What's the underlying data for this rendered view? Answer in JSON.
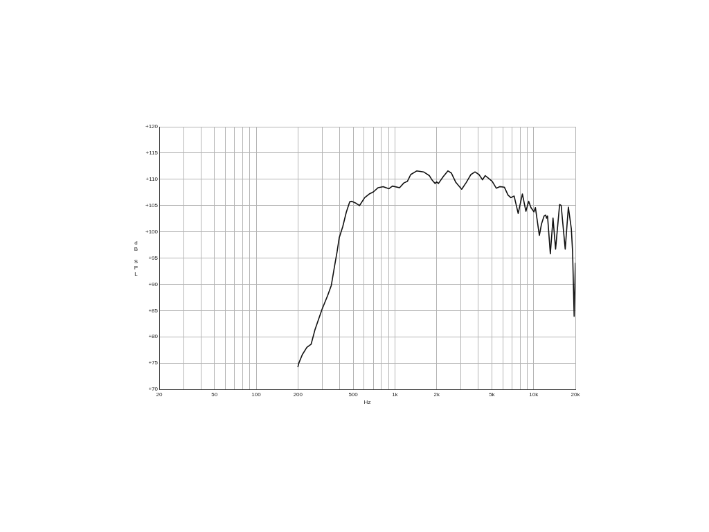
{
  "chart_data": {
    "type": "line",
    "xlabel": "Hz",
    "ylabel": "dB SPL",
    "log": "x",
    "grid": true,
    "xlim": [
      20,
      20000
    ],
    "ylim": [
      70,
      120
    ],
    "xticks": [
      20,
      {
        "value": 30,
        "label": null
      },
      {
        "value": 40,
        "label": null
      },
      50,
      {
        "value": 60,
        "label": null
      },
      {
        "value": 70,
        "label": null
      },
      {
        "value": 80,
        "label": null
      },
      {
        "value": 90,
        "label": null
      },
      100,
      200,
      {
        "value": 300,
        "label": null
      },
      {
        "value": 400,
        "label": null
      },
      500,
      {
        "value": 600,
        "label": null
      },
      {
        "value": 700,
        "label": null
      },
      {
        "value": 800,
        "label": null
      },
      {
        "value": 900,
        "label": null
      },
      {
        "value": 1000,
        "label": "1k"
      },
      {
        "value": 2000,
        "label": "2k"
      },
      {
        "value": 3000,
        "label": null
      },
      {
        "value": 4000,
        "label": null
      },
      {
        "value": 5000,
        "label": "5k"
      },
      {
        "value": 6000,
        "label": null
      },
      {
        "value": 7000,
        "label": null
      },
      {
        "value": 8000,
        "label": null
      },
      {
        "value": 9000,
        "label": null
      },
      {
        "value": 10000,
        "label": "10k"
      },
      {
        "value": 20000,
        "label": "20k"
      }
    ],
    "yticks": [
      {
        "value": 70,
        "label": "+70"
      },
      {
        "value": 75,
        "label": "+75"
      },
      {
        "value": 80,
        "label": "+80"
      },
      {
        "value": 85,
        "label": "+85"
      },
      {
        "value": 90,
        "label": "+90"
      },
      {
        "value": 95,
        "label": "+95"
      },
      {
        "value": 100,
        "label": "+100"
      },
      {
        "value": 105,
        "label": "+105"
      },
      {
        "value": 110,
        "label": "+110"
      },
      {
        "value": 115,
        "label": "+115"
      },
      {
        "value": 120,
        "label": "+120"
      }
    ],
    "x": [
      200,
      203,
      215,
      232,
      249,
      265,
      298,
      328,
      348,
      368,
      383,
      397,
      421,
      446,
      472,
      490,
      519,
      556,
      605,
      653,
      700,
      757,
      823,
      906,
      960,
      1080,
      1160,
      1230,
      1300,
      1440,
      1610,
      1770,
      1860,
      1950,
      2000,
      2060,
      2230,
      2410,
      2550,
      2750,
      3030,
      3270,
      3530,
      3780,
      4040,
      4280,
      4480,
      5030,
      5380,
      5700,
      6150,
      6540,
      6860,
      7240,
      7400,
      7740,
      8300,
      8800,
      9210,
      9570,
      10050,
      10300,
      11000,
      11400,
      11900,
      12200,
      12400,
      12600,
      13200,
      13800,
      14400,
      15400,
      15800,
      16900,
      17800,
      18700,
      19100,
      19600,
      20000
    ],
    "series": [
      {
        "color": "#111111",
        "values": [
          74.3,
          75.0,
          76.6,
          78.0,
          78.6,
          81.3,
          85.2,
          87.9,
          89.8,
          93.6,
          96.2,
          98.9,
          101.0,
          103.7,
          105.7,
          105.8,
          105.5,
          105.0,
          106.5,
          107.2,
          107.6,
          108.4,
          108.6,
          108.2,
          108.7,
          108.4,
          109.3,
          109.6,
          110.9,
          111.6,
          111.4,
          110.7,
          109.8,
          109.2,
          109.5,
          109.2,
          110.5,
          111.6,
          111.2,
          109.4,
          108.1,
          109.4,
          110.9,
          111.4,
          110.9,
          109.9,
          110.7,
          109.6,
          108.3,
          108.6,
          108.5,
          107.0,
          106.5,
          106.8,
          105.7,
          103.5,
          107.2,
          103.9,
          105.8,
          104.6,
          103.8,
          104.6,
          99.3,
          101.5,
          103.0,
          103.2,
          102.6,
          103.0,
          95.8,
          102.6,
          96.7,
          105.2,
          105.0,
          96.7,
          104.7,
          100.6,
          96.2,
          83.9,
          94.0
        ]
      }
    ]
  }
}
